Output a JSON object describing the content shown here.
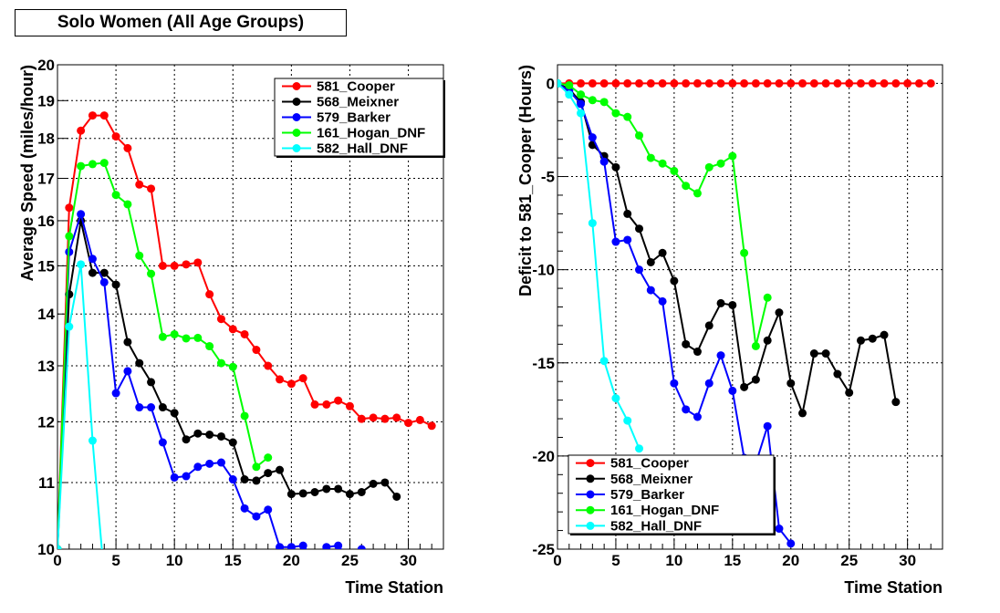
{
  "title": "Solo Women (All Age Groups)",
  "chart_data": [
    {
      "type": "line",
      "xlabel": "Time Station",
      "ylabel": "Average Speed (miles/hour)",
      "xlim": [
        0,
        33
      ],
      "ylim": [
        10,
        20
      ],
      "ylog": true,
      "x_ticks": [
        0,
        5,
        10,
        15,
        20,
        25,
        30
      ],
      "y_ticks": [
        10,
        11,
        12,
        13,
        14,
        15,
        16,
        17,
        18,
        19,
        20
      ],
      "y_tick_labels": [
        "10",
        "11",
        "12",
        "13",
        "14",
        "15",
        "16",
        "17",
        "18",
        "19",
        "20"
      ],
      "grid": true,
      "legend_position": "top-right",
      "series": [
        {
          "name": "581_Cooper",
          "color": "#ff0000",
          "x": [
            0,
            1,
            2,
            3,
            4,
            5,
            6,
            7,
            8,
            9,
            10,
            11,
            12,
            13,
            14,
            15,
            16,
            17,
            18,
            19,
            20,
            21,
            22,
            23,
            24,
            25,
            26,
            27,
            28,
            29,
            30,
            31,
            32
          ],
          "y": [
            10,
            16.3,
            18.2,
            18.6,
            18.6,
            18.05,
            17.75,
            16.85,
            16.75,
            15.0,
            15.0,
            15.03,
            15.07,
            14.4,
            13.9,
            13.7,
            13.6,
            13.3,
            13.0,
            12.75,
            12.67,
            12.77,
            12.3,
            12.3,
            12.37,
            12.27,
            12.05,
            12.07,
            12.05,
            12.07,
            11.98,
            12.03,
            11.93
          ]
        },
        {
          "name": "568_Meixner",
          "color": "#000000",
          "x": [
            0,
            1,
            2,
            3,
            4,
            5,
            6,
            7,
            8,
            9,
            10,
            11,
            12,
            13,
            14,
            15,
            16,
            17,
            18,
            19,
            20,
            21,
            22,
            23,
            24,
            25,
            26,
            27,
            28,
            29
          ],
          "y": [
            10,
            14.4,
            16.0,
            14.85,
            14.85,
            14.6,
            13.45,
            13.05,
            12.7,
            12.25,
            12.15,
            11.7,
            11.8,
            11.78,
            11.75,
            11.65,
            11.05,
            11.03,
            11.15,
            11.2,
            10.82,
            10.83,
            10.85,
            10.9,
            10.9,
            10.82,
            10.85,
            10.98,
            11.0,
            10.78
          ]
        },
        {
          "name": "579_Barker",
          "color": "#0000ff",
          "x": [
            0,
            1,
            2,
            3,
            4,
            5,
            6,
            7,
            8,
            9,
            10,
            11,
            12,
            13,
            14,
            15,
            16,
            17,
            18,
            19,
            20,
            21,
            22,
            23,
            24,
            25,
            26
          ],
          "y": [
            10,
            15.3,
            16.15,
            15.15,
            14.65,
            12.5,
            12.9,
            12.25,
            12.25,
            11.65,
            11.08,
            11.1,
            11.25,
            11.3,
            11.32,
            11.05,
            10.6,
            10.48,
            10.58,
            10.03,
            10.03,
            10.05,
            9.85,
            10.03,
            10.05,
            9.85,
            10.0
          ]
        },
        {
          "name": "161_Hogan_DNF",
          "color": "#00ff00",
          "x": [
            0,
            1,
            2,
            3,
            4,
            5,
            6,
            7,
            8,
            9,
            10,
            11,
            12,
            13,
            14,
            15,
            16,
            17,
            18
          ],
          "y": [
            10,
            15.65,
            17.3,
            17.35,
            17.38,
            16.6,
            16.38,
            15.22,
            14.83,
            13.55,
            13.6,
            13.52,
            13.53,
            13.37,
            13.05,
            12.98,
            12.1,
            11.25,
            11.4
          ]
        },
        {
          "name": "582_Hall_DNF",
          "color": "#00ffff",
          "x": [
            0,
            1,
            2,
            3,
            4
          ],
          "y": [
            10,
            13.75,
            15.03,
            11.68,
            9.6
          ]
        }
      ]
    },
    {
      "type": "line",
      "xlabel": "Time Station",
      "ylabel": "Deficit to 581_Cooper (Hours)",
      "xlim": [
        0,
        33
      ],
      "ylim": [
        -25,
        1
      ],
      "x_ticks": [
        0,
        5,
        10,
        15,
        20,
        25,
        30
      ],
      "y_ticks": [
        0,
        -5,
        -10,
        -15,
        -20,
        -25
      ],
      "grid": true,
      "legend_position": "bottom-left",
      "series": [
        {
          "name": "581_Cooper",
          "color": "#ff0000",
          "x": [
            0,
            1,
            2,
            3,
            4,
            5,
            6,
            7,
            8,
            9,
            10,
            11,
            12,
            13,
            14,
            15,
            16,
            17,
            18,
            19,
            20,
            21,
            22,
            23,
            24,
            25,
            26,
            27,
            28,
            29,
            30,
            31,
            32
          ],
          "y": [
            0,
            0,
            0,
            0,
            0,
            0,
            0,
            0,
            0,
            0,
            0,
            0,
            0,
            0,
            0,
            0,
            0,
            0,
            0,
            0,
            0,
            0,
            0,
            0,
            0,
            0,
            0,
            0,
            0,
            0,
            0,
            0,
            0
          ]
        },
        {
          "name": "568_Meixner",
          "color": "#000000",
          "x": [
            0,
            1,
            2,
            3,
            4,
            5,
            6,
            7,
            8,
            9,
            10,
            11,
            12,
            13,
            14,
            15,
            16,
            17,
            18,
            19,
            20,
            21,
            22,
            23,
            24,
            25,
            26,
            27,
            28,
            29
          ],
          "y": [
            0,
            -0.3,
            -1.0,
            -3.3,
            -3.9,
            -4.5,
            -7.0,
            -7.8,
            -9.6,
            -9.1,
            -10.6,
            -14.0,
            -14.4,
            -13.0,
            -11.8,
            -11.9,
            -16.3,
            -15.9,
            -13.8,
            -12.3,
            -16.1,
            -17.7,
            -14.5,
            -14.5,
            -15.6,
            -16.6,
            -13.8,
            -13.7,
            -13.5,
            -17.1
          ]
        },
        {
          "name": "579_Barker",
          "color": "#0000ff",
          "x": [
            0,
            1,
            2,
            3,
            4,
            5,
            6,
            7,
            8,
            9,
            10,
            11,
            12,
            13,
            14,
            15,
            16,
            17,
            18,
            19,
            20
          ],
          "y": [
            0,
            -0.4,
            -1.1,
            -2.9,
            -4.2,
            -8.5,
            -8.4,
            -10.0,
            -11.1,
            -11.7,
            -16.1,
            -17.5,
            -17.9,
            -16.1,
            -14.6,
            -16.5,
            -20.1,
            -20.4,
            -18.4,
            -23.9,
            -24.7
          ]
        },
        {
          "name": "161_Hogan_DNF",
          "color": "#00ff00",
          "x": [
            0,
            1,
            2,
            3,
            4,
            5,
            6,
            7,
            8,
            9,
            10,
            11,
            12,
            13,
            14,
            15,
            16,
            17,
            18
          ],
          "y": [
            0,
            -0.1,
            -0.6,
            -0.9,
            -1.0,
            -1.6,
            -1.8,
            -2.8,
            -4.0,
            -4.3,
            -4.7,
            -5.5,
            -5.9,
            -4.5,
            -4.3,
            -3.9,
            -9.1,
            -14.1,
            -11.5
          ]
        },
        {
          "name": "582_Hall_DNF",
          "color": "#00ffff",
          "x": [
            0,
            1,
            2,
            3,
            4,
            5,
            6,
            7
          ],
          "y": [
            0,
            -0.6,
            -1.6,
            -7.5,
            -14.9,
            -16.9,
            -18.1,
            -19.6
          ]
        }
      ]
    }
  ]
}
